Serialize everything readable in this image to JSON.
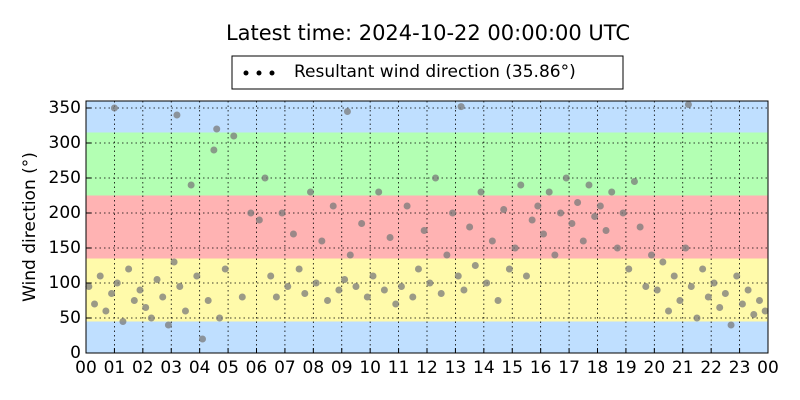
{
  "chart_data": {
    "type": "scatter",
    "title": "Latest time: 2024-10-22 00:00:00 UTC",
    "y_label": "Wind direction (°)",
    "xlim": [
      0,
      24
    ],
    "ylim": [
      0,
      360
    ],
    "xticks": [
      {
        "value": 0,
        "label": "00"
      },
      {
        "value": 1,
        "label": "01"
      },
      {
        "value": 2,
        "label": "02"
      },
      {
        "value": 3,
        "label": "03"
      },
      {
        "value": 4,
        "label": "04"
      },
      {
        "value": 5,
        "label": "05"
      },
      {
        "value": 6,
        "label": "06"
      },
      {
        "value": 7,
        "label": "07"
      },
      {
        "value": 8,
        "label": "08"
      },
      {
        "value": 9,
        "label": "09"
      },
      {
        "value": 10,
        "label": "10"
      },
      {
        "value": 11,
        "label": "11"
      },
      {
        "value": 12,
        "label": "12"
      },
      {
        "value": 13,
        "label": "13"
      },
      {
        "value": 14,
        "label": "14"
      },
      {
        "value": 15,
        "label": "15"
      },
      {
        "value": 16,
        "label": "16"
      },
      {
        "value": 17,
        "label": "17"
      },
      {
        "value": 18,
        "label": "18"
      },
      {
        "value": 19,
        "label": "19"
      },
      {
        "value": 20,
        "label": "20"
      },
      {
        "value": 21,
        "label": "21"
      },
      {
        "value": 22,
        "label": "22"
      },
      {
        "value": 23,
        "label": "23"
      },
      {
        "value": 24,
        "label": "00"
      }
    ],
    "yticks": [
      0,
      50,
      100,
      150,
      200,
      250,
      300,
      350
    ],
    "grid": true,
    "legend": "upper center",
    "bands": [
      {
        "from": 0,
        "to": 45,
        "color": "#bfdfff"
      },
      {
        "from": 45,
        "to": 135,
        "color": "#fffaaa"
      },
      {
        "from": 135,
        "to": 225,
        "color": "#ffb3b3"
      },
      {
        "from": 225,
        "to": 315,
        "color": "#b3ffb3"
      },
      {
        "from": 315,
        "to": 360,
        "color": "#bfdfff"
      }
    ],
    "series": [
      {
        "name": "Resultant wind direction (35.86°)",
        "color": "#7a7a7a",
        "x": [
          0.1,
          0.3,
          0.5,
          0.7,
          0.9,
          1.1,
          1.3,
          1.5,
          1.7,
          1.9,
          2.1,
          2.3,
          2.5,
          2.7,
          2.9,
          3.1,
          3.3,
          3.5,
          3.7,
          3.9,
          4.1,
          4.3,
          4.5,
          4.7,
          4.9,
          5.2,
          5.5,
          5.8,
          6.1,
          6.3,
          6.5,
          6.7,
          6.9,
          7.1,
          7.3,
          7.5,
          7.7,
          7.9,
          8.1,
          8.3,
          8.5,
          8.7,
          8.9,
          9.1,
          9.3,
          9.5,
          9.7,
          9.9,
          10.1,
          10.3,
          10.5,
          10.7,
          10.9,
          11.1,
          11.3,
          11.5,
          11.7,
          11.9,
          12.1,
          12.3,
          12.5,
          12.7,
          12.9,
          13.1,
          13.3,
          13.5,
          13.7,
          13.9,
          14.1,
          14.3,
          14.5,
          14.7,
          14.9,
          15.1,
          15.3,
          15.5,
          15.7,
          15.9,
          16.1,
          16.3,
          16.5,
          16.7,
          16.9,
          17.1,
          17.3,
          17.5,
          17.7,
          17.9,
          18.1,
          18.3,
          18.5,
          18.7,
          18.9,
          19.1,
          19.3,
          19.5,
          19.7,
          19.9,
          20.1,
          20.3,
          20.5,
          20.7,
          20.9,
          21.1,
          21.3,
          21.5,
          21.7,
          21.9,
          22.1,
          22.3,
          22.5,
          22.7,
          22.9,
          23.1,
          23.3,
          23.5,
          23.7,
          23.9,
          1.0,
          3.2,
          4.6,
          9.2,
          13.2,
          21.2
        ],
        "values": [
          95,
          70,
          110,
          60,
          85,
          100,
          45,
          120,
          75,
          90,
          65,
          50,
          105,
          80,
          40,
          130,
          95,
          60,
          240,
          110,
          20,
          75,
          290,
          50,
          120,
          310,
          80,
          200,
          190,
          250,
          110,
          80,
          200,
          95,
          170,
          120,
          85,
          230,
          100,
          160,
          75,
          210,
          90,
          105,
          140,
          95,
          185,
          80,
          110,
          230,
          90,
          165,
          70,
          95,
          210,
          80,
          120,
          175,
          100,
          250,
          85,
          140,
          200,
          110,
          90,
          180,
          125,
          230,
          100,
          160,
          75,
          205,
          120,
          150,
          240,
          110,
          190,
          210,
          170,
          230,
          140,
          200,
          250,
          185,
          215,
          160,
          240,
          195,
          210,
          175,
          230,
          150,
          200,
          120,
          245,
          180,
          95,
          140,
          90,
          130,
          60,
          110,
          75,
          150,
          95,
          50,
          120,
          80,
          100,
          65,
          85,
          40,
          110,
          70,
          90,
          55,
          75,
          60,
          350,
          340,
          320,
          345,
          352,
          355
        ]
      }
    ]
  }
}
